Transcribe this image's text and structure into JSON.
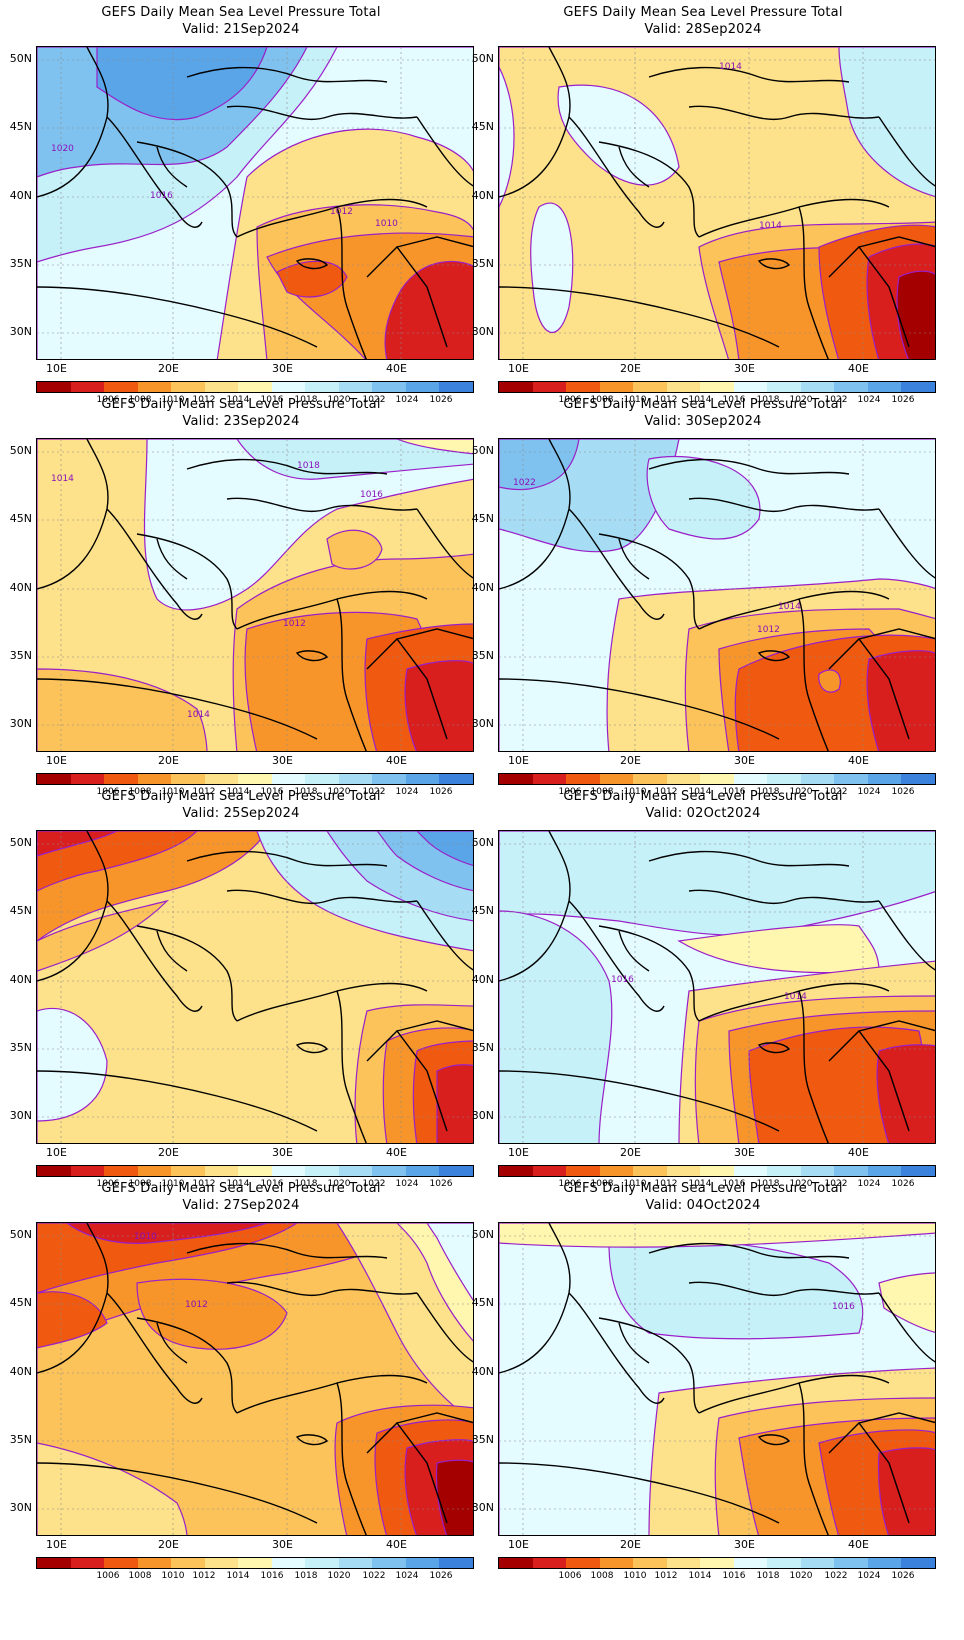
{
  "title_prefix": "GEFS Daily Mean Sea Level Pressure Total",
  "lat_labels": [
    "50N",
    "45N",
    "40N",
    "35N",
    "30N"
  ],
  "lon_labels": [
    "10E",
    "20E",
    "30E",
    "40E"
  ],
  "colorbar": {
    "labels": [
      "1006",
      "1008",
      "1010",
      "1012",
      "1014",
      "1016",
      "1018",
      "1020",
      "1022",
      "1024",
      "1026"
    ],
    "colors": [
      "#a40000",
      "#d91e1e",
      "#ef5a10",
      "#f8952a",
      "#fcc35a",
      "#fde18b",
      "#fff6b0",
      "#e4fbff",
      "#c6f1f9",
      "#a6ddf5",
      "#80c2ef",
      "#5aa4e8",
      "#3b82dc"
    ]
  },
  "panels": [
    {
      "valid": "Valid: 21Sep2024",
      "contours": [
        "1020",
        "1016",
        "1012",
        "1010"
      ]
    },
    {
      "valid": "Valid: 28Sep2024",
      "contours": [
        "1014",
        "1014"
      ]
    },
    {
      "valid": "Valid: 23Sep2024",
      "contours": [
        "1014",
        "1018",
        "1016",
        "1012",
        "1014"
      ]
    },
    {
      "valid": "Valid: 30Sep2024",
      "contours": [
        "1022",
        "1014",
        "1012"
      ]
    },
    {
      "valid": "Valid: 25Sep2024",
      "contours": []
    },
    {
      "valid": "Valid: 02Oct2024",
      "contours": [
        "1016",
        "1014"
      ]
    },
    {
      "valid": "Valid: 27Sep2024",
      "contours": [
        "1010",
        "1012"
      ]
    },
    {
      "valid": "Valid: 04Oct2024",
      "contours": [
        "1016"
      ]
    }
  ]
}
